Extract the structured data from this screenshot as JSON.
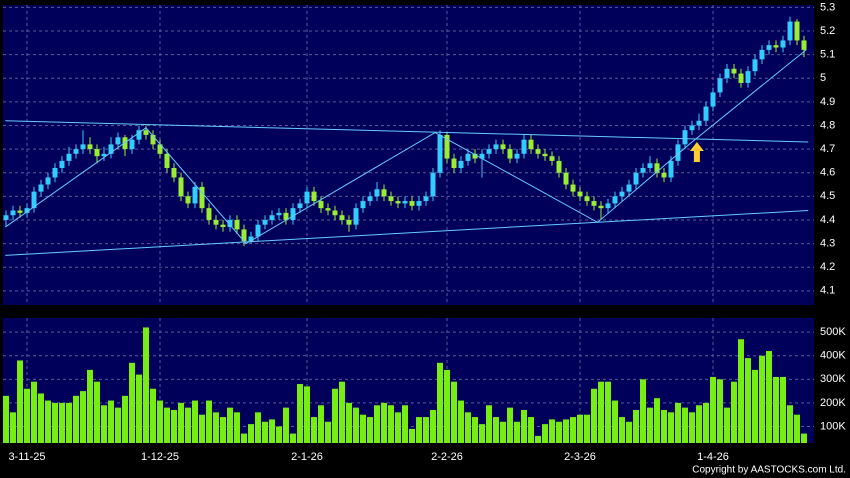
{
  "chart_data": [
    {
      "type": "candlestick",
      "up_color": "#33ccff",
      "down_color": "#99ee33",
      "open": [
        4.4,
        4.42,
        4.44,
        4.43,
        4.45,
        4.52,
        4.55,
        4.58,
        4.62,
        4.65,
        4.68,
        4.7,
        4.72,
        4.7,
        4.67,
        4.68,
        4.72,
        4.75,
        4.7,
        4.74,
        4.78,
        4.76,
        4.72,
        4.68,
        4.62,
        4.58,
        4.5,
        4.47,
        4.54,
        4.45,
        4.4,
        4.38,
        4.37,
        4.4,
        4.36,
        4.31,
        4.33,
        4.38,
        4.4,
        4.42,
        4.43,
        4.4,
        4.45,
        4.47,
        4.52,
        4.48,
        4.45,
        4.44,
        4.42,
        4.4,
        4.38,
        4.45,
        4.48,
        4.5,
        4.53,
        4.5,
        4.48,
        4.47,
        4.48,
        4.46,
        4.48,
        4.5,
        4.6,
        4.76,
        4.66,
        4.62,
        4.65,
        4.68,
        4.66,
        4.68,
        4.7,
        4.72,
        4.7,
        4.66,
        4.68,
        4.74,
        4.7,
        4.68,
        4.67,
        4.65,
        4.6,
        4.55,
        4.52,
        4.5,
        4.48,
        4.46,
        4.45,
        4.47,
        4.5,
        4.52,
        4.55,
        4.6,
        4.62,
        4.64,
        4.6,
        4.58,
        4.65,
        4.72,
        4.78,
        4.8,
        4.82,
        4.88,
        4.94,
        5.0,
        5.04,
        5.02,
        4.98,
        5.03,
        5.08,
        5.12,
        5.14,
        5.13,
        5.16,
        5.24,
        5.16
      ],
      "high": [
        4.44,
        4.46,
        4.46,
        4.47,
        4.54,
        4.57,
        4.6,
        4.64,
        4.67,
        4.71,
        4.72,
        4.78,
        4.75,
        4.72,
        4.71,
        4.75,
        4.77,
        4.76,
        4.76,
        4.8,
        4.8,
        4.78,
        4.74,
        4.7,
        4.64,
        4.6,
        4.52,
        4.56,
        4.56,
        4.47,
        4.42,
        4.4,
        4.42,
        4.42,
        4.38,
        4.35,
        4.4,
        4.42,
        4.44,
        4.45,
        4.45,
        4.47,
        4.49,
        4.54,
        4.54,
        4.5,
        4.47,
        4.46,
        4.44,
        4.42,
        4.47,
        4.5,
        4.52,
        4.56,
        4.55,
        4.52,
        4.5,
        4.5,
        4.5,
        4.5,
        4.52,
        4.62,
        4.78,
        4.77,
        4.68,
        4.67,
        4.7,
        4.7,
        4.7,
        4.72,
        4.74,
        4.74,
        4.72,
        4.7,
        4.76,
        4.76,
        4.72,
        4.7,
        4.69,
        4.67,
        4.62,
        4.57,
        4.54,
        4.52,
        4.5,
        4.48,
        4.49,
        4.52,
        4.54,
        4.57,
        4.62,
        4.64,
        4.67,
        4.66,
        4.62,
        4.67,
        4.74,
        4.8,
        4.82,
        4.85,
        4.9,
        4.96,
        5.02,
        5.06,
        5.06,
        5.04,
        5.05,
        5.1,
        5.14,
        5.16,
        5.16,
        5.18,
        5.26,
        5.25,
        5.18
      ],
      "low": [
        4.37,
        4.4,
        4.41,
        4.41,
        4.43,
        4.5,
        4.53,
        4.56,
        4.6,
        4.63,
        4.66,
        4.68,
        4.68,
        4.64,
        4.65,
        4.66,
        4.7,
        4.67,
        4.68,
        4.72,
        4.74,
        4.7,
        4.66,
        4.6,
        4.56,
        4.48,
        4.45,
        4.45,
        4.43,
        4.38,
        4.36,
        4.35,
        4.35,
        4.34,
        4.29,
        4.3,
        4.31,
        4.36,
        4.38,
        4.4,
        4.38,
        4.38,
        4.43,
        4.45,
        4.46,
        4.43,
        4.42,
        4.4,
        4.38,
        4.35,
        4.36,
        4.43,
        4.46,
        4.48,
        4.48,
        4.46,
        4.45,
        4.45,
        4.44,
        4.44,
        4.46,
        4.48,
        4.58,
        4.64,
        4.6,
        4.6,
        4.63,
        4.64,
        4.58,
        4.66,
        4.68,
        4.68,
        4.64,
        4.64,
        4.66,
        4.68,
        4.66,
        4.65,
        4.63,
        4.58,
        4.53,
        4.5,
        4.48,
        4.46,
        4.44,
        4.4,
        4.43,
        4.45,
        4.48,
        4.5,
        4.53,
        4.58,
        4.6,
        4.58,
        4.56,
        4.56,
        4.63,
        4.7,
        4.76,
        4.78,
        4.8,
        4.86,
        4.92,
        4.98,
        5.0,
        4.96,
        4.96,
        5.01,
        5.06,
        5.1,
        5.11,
        5.11,
        5.14,
        5.14,
        5.09
      ],
      "close": [
        4.42,
        4.44,
        4.43,
        4.45,
        4.52,
        4.55,
        4.58,
        4.62,
        4.65,
        4.68,
        4.7,
        4.72,
        4.7,
        4.67,
        4.68,
        4.72,
        4.75,
        4.7,
        4.74,
        4.78,
        4.76,
        4.72,
        4.68,
        4.62,
        4.58,
        4.5,
        4.47,
        4.54,
        4.45,
        4.4,
        4.38,
        4.37,
        4.4,
        4.36,
        4.31,
        4.33,
        4.38,
        4.4,
        4.42,
        4.43,
        4.4,
        4.45,
        4.47,
        4.52,
        4.48,
        4.45,
        4.44,
        4.42,
        4.4,
        4.38,
        4.45,
        4.48,
        4.5,
        4.53,
        4.5,
        4.48,
        4.47,
        4.48,
        4.46,
        4.48,
        4.5,
        4.6,
        4.76,
        4.66,
        4.62,
        4.65,
        4.68,
        4.66,
        4.68,
        4.7,
        4.72,
        4.7,
        4.66,
        4.68,
        4.74,
        4.7,
        4.68,
        4.67,
        4.65,
        4.6,
        4.55,
        4.52,
        4.5,
        4.48,
        4.46,
        4.45,
        4.47,
        4.5,
        4.52,
        4.55,
        4.6,
        4.62,
        4.64,
        4.6,
        4.58,
        4.65,
        4.72,
        4.78,
        4.8,
        4.82,
        4.88,
        4.94,
        5.0,
        5.04,
        5.02,
        4.98,
        5.03,
        5.08,
        5.12,
        5.14,
        5.13,
        5.16,
        5.24,
        5.16,
        5.12
      ],
      "ylim": [
        4.04,
        5.31
      ],
      "yticks": [
        4.1,
        4.2,
        4.3,
        4.4,
        4.5,
        4.6,
        4.7,
        4.8,
        4.9,
        5,
        5.1,
        5.2,
        5.3
      ],
      "xticks": [
        {
          "value": 3,
          "label": "3-11-25"
        },
        {
          "value": 22,
          "label": "1-12-25"
        },
        {
          "value": 43,
          "label": "2-1-26"
        },
        {
          "value": 63,
          "label": "2-2-26"
        },
        {
          "value": 82,
          "label": "2-3-26"
        },
        {
          "value": 101,
          "label": "1-4-26"
        }
      ],
      "line_color": "#66ccff",
      "lines": [
        {
          "x": [
            -0.1,
            114.6
          ],
          "y": [
            4.82,
            4.73
          ]
        },
        {
          "x": [
            -0.1,
            114.6
          ],
          "y": [
            4.25,
            4.44
          ]
        },
        {
          "x": [
            -0.1,
            20,
            34.3,
            61.3,
            84.5,
            98,
            114.3
          ],
          "y": [
            4.37,
            4.79,
            4.3,
            4.77,
            4.39,
            4.73,
            5.12
          ]
        }
      ],
      "arrow": {
        "x": 98.7,
        "y": 4.73,
        "color": "#ffcc33"
      },
      "grid": true
    },
    {
      "type": "bar",
      "color": "#77ee11",
      "values": [
        230000,
        160000,
        380000,
        260000,
        290000,
        240000,
        210000,
        200000,
        200000,
        200000,
        230000,
        250000,
        340000,
        290000,
        190000,
        210000,
        180000,
        230000,
        370000,
        320000,
        520000,
        260000,
        210000,
        180000,
        170000,
        200000,
        180000,
        210000,
        150000,
        210000,
        160000,
        140000,
        180000,
        160000,
        70000,
        110000,
        160000,
        120000,
        130000,
        100000,
        180000,
        70000,
        280000,
        270000,
        140000,
        190000,
        120000,
        260000,
        290000,
        200000,
        180000,
        150000,
        140000,
        190000,
        200000,
        190000,
        160000,
        190000,
        90000,
        140000,
        140000,
        170000,
        370000,
        340000,
        290000,
        210000,
        160000,
        140000,
        110000,
        190000,
        140000,
        120000,
        180000,
        120000,
        170000,
        140000,
        60000,
        110000,
        130000,
        120000,
        130000,
        140000,
        150000,
        150000,
        260000,
        290000,
        290000,
        210000,
        140000,
        120000,
        170000,
        300000,
        180000,
        220000,
        170000,
        160000,
        200000,
        180000,
        160000,
        190000,
        200000,
        310000,
        300000,
        180000,
        290000,
        470000,
        390000,
        340000,
        400000,
        420000,
        310000,
        310000,
        190000,
        150000,
        70000
      ],
      "ylim": [
        30000,
        560000
      ],
      "yticks": [
        {
          "value": 100000,
          "label": "100K"
        },
        {
          "value": 200000,
          "label": "200K"
        },
        {
          "value": 300000,
          "label": "300K"
        },
        {
          "value": 400000,
          "label": "400K"
        },
        {
          "value": 500000,
          "label": "500K"
        }
      ],
      "grid": true
    }
  ],
  "footer": "Copyright by AASTOCKS.com Ltd."
}
